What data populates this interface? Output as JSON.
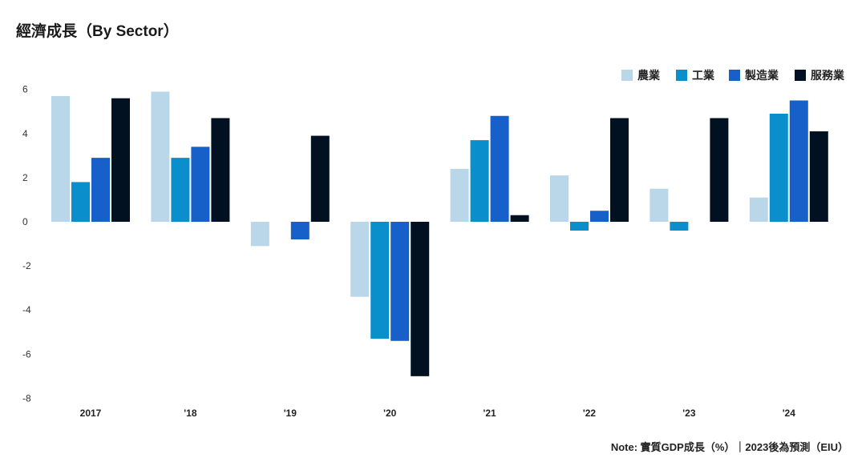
{
  "chart_data": {
    "type": "bar",
    "title": "經濟成長（By Sector）",
    "note": "Note: 實質GDP成長（%）｜2023後為預測（EIU）",
    "xlabel": "",
    "ylabel": "",
    "ylim": [
      -8,
      6
    ],
    "yticks": [
      6,
      4,
      2,
      0,
      -2,
      -4,
      -6,
      -8
    ],
    "grid": false,
    "legend_position": "top-right",
    "categories": [
      "2017",
      "'18",
      "'19",
      "'20",
      "'21",
      "'22",
      "'23",
      "'24"
    ],
    "series": [
      {
        "name": "農業",
        "color": "#b9d7e8",
        "values": [
          5.7,
          5.9,
          -1.1,
          -3.4,
          2.4,
          2.1,
          1.5,
          1.1
        ]
      },
      {
        "name": "工業",
        "color": "#0a8fcc",
        "values": [
          1.8,
          2.9,
          0,
          -5.3,
          3.7,
          -0.4,
          -0.4,
          4.9
        ]
      },
      {
        "name": "製造業",
        "color": "#1760c9",
        "values": [
          2.9,
          3.4,
          -0.8,
          -5.4,
          4.8,
          0.5,
          0,
          5.5
        ]
      },
      {
        "name": "服務業",
        "color": "#011122",
        "values": [
          5.6,
          4.7,
          3.9,
          -7.0,
          0.3,
          4.7,
          4.7,
          4.1
        ]
      }
    ]
  }
}
